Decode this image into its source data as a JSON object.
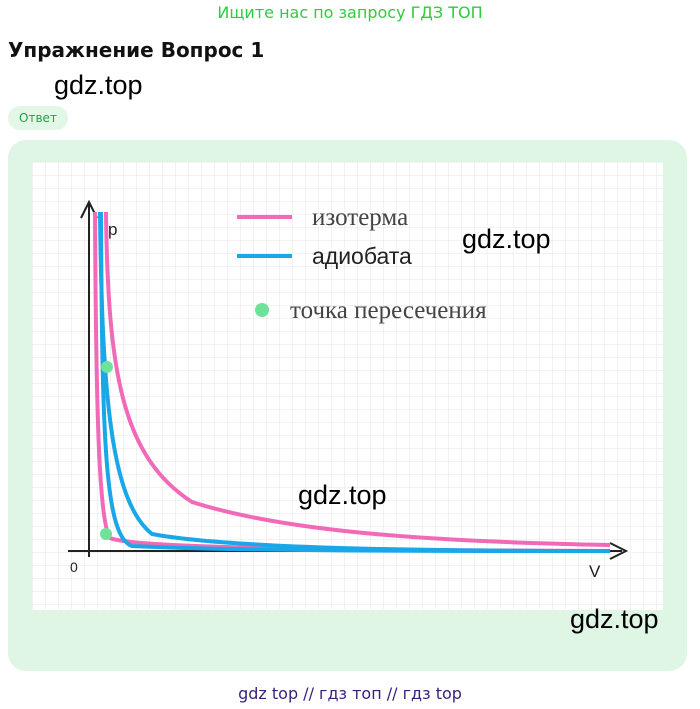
{
  "header": {
    "promo_text": "Ищите нас по запросу ГДЗ ТОП",
    "exercise_title": "Упражнение Вопрос 1"
  },
  "watermark": "gdz.top",
  "answer": {
    "badge_label": "Ответ"
  },
  "diagram": {
    "axis_y_label": "p",
    "axis_x_label": "V",
    "origin_label": "0",
    "legend": [
      {
        "label": "изотерма",
        "color": "#f06ab8"
      },
      {
        "label": "адиобата",
        "color": "#1aa7e8"
      },
      {
        "label": "точка пересечения",
        "color": "#6fe29a"
      }
    ]
  },
  "footer": {
    "text": "gdz top  //  гдз топ  //  гдз top"
  }
}
